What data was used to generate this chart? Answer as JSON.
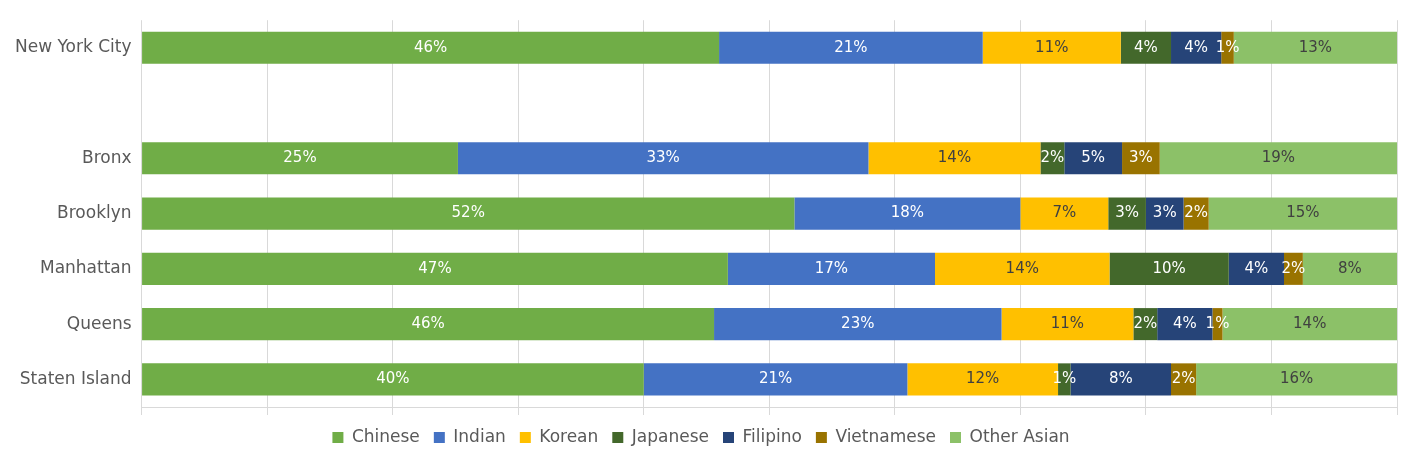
{
  "chart_data": {
    "type": "bar",
    "orientation": "horizontal",
    "stacked": true,
    "categories": [
      "New York City",
      null,
      "Bronx",
      "Brooklyn",
      "Manhattan",
      "Queens",
      "Staten Island"
    ],
    "series": [
      {
        "name": "Chinese",
        "color": "#70ad47",
        "values": [
          46,
          null,
          25.2,
          52,
          46.7,
          45.6,
          40
        ],
        "value_labels": [
          "46%",
          null,
          "25%",
          "52%",
          "47%",
          "46%",
          "40%"
        ]
      },
      {
        "name": "Indian",
        "color": "#4472c4",
        "values": [
          21,
          null,
          32.7,
          18,
          16.5,
          22.9,
          21
        ],
        "value_labels": [
          "21%",
          null,
          "33%",
          "18%",
          "17%",
          "23%",
          "21%"
        ]
      },
      {
        "name": "Korean",
        "color": "#ffc000",
        "values": [
          11,
          null,
          13.7,
          7,
          13.9,
          10.5,
          12
        ],
        "value_labels": [
          "11%",
          null,
          "14%",
          "7%",
          "14%",
          "11%",
          "12%"
        ]
      },
      {
        "name": "Japanese",
        "color": "#43682b",
        "values": [
          4,
          null,
          1.9,
          3,
          9.5,
          1.9,
          1
        ],
        "value_labels": [
          "4%",
          null,
          "2%",
          "3%",
          "10%",
          "2%",
          "1%"
        ]
      },
      {
        "name": "Filipino",
        "color": "#264478",
        "values": [
          4,
          null,
          4.6,
          3,
          4.4,
          4.4,
          8
        ],
        "value_labels": [
          "4%",
          null,
          "5%",
          "3%",
          "4%",
          "4%",
          "8%"
        ]
      },
      {
        "name": "Vietnamese",
        "color": "#997300",
        "values": [
          1,
          null,
          3.0,
          2,
          1.5,
          0.8,
          2
        ],
        "value_labels": [
          "1%",
          null,
          "3%",
          "2%",
          "2%",
          "1%",
          "2%"
        ]
      },
      {
        "name": "Other Asian",
        "color": "#8cc168",
        "values": [
          13,
          null,
          18.9,
          15,
          7.5,
          13.9,
          16
        ],
        "value_labels": [
          "13%",
          null,
          "19%",
          "15%",
          "8%",
          "14%",
          "16%"
        ]
      }
    ],
    "xlim": [
      0,
      100
    ],
    "xticks": [
      {
        "value": 0,
        "label": null
      },
      {
        "value": 10,
        "label": null
      },
      {
        "value": 20,
        "label": null
      },
      {
        "value": 30,
        "label": null
      },
      {
        "value": 40,
        "label": null
      },
      {
        "value": 50,
        "label": null
      },
      {
        "value": 60,
        "label": null
      },
      {
        "value": 70,
        "label": null
      },
      {
        "value": 80,
        "label": null
      },
      {
        "value": 90,
        "label": null
      },
      {
        "value": 100,
        "label": null
      }
    ],
    "grid": "x",
    "tick_labels": "y",
    "legend": "bottom"
  }
}
